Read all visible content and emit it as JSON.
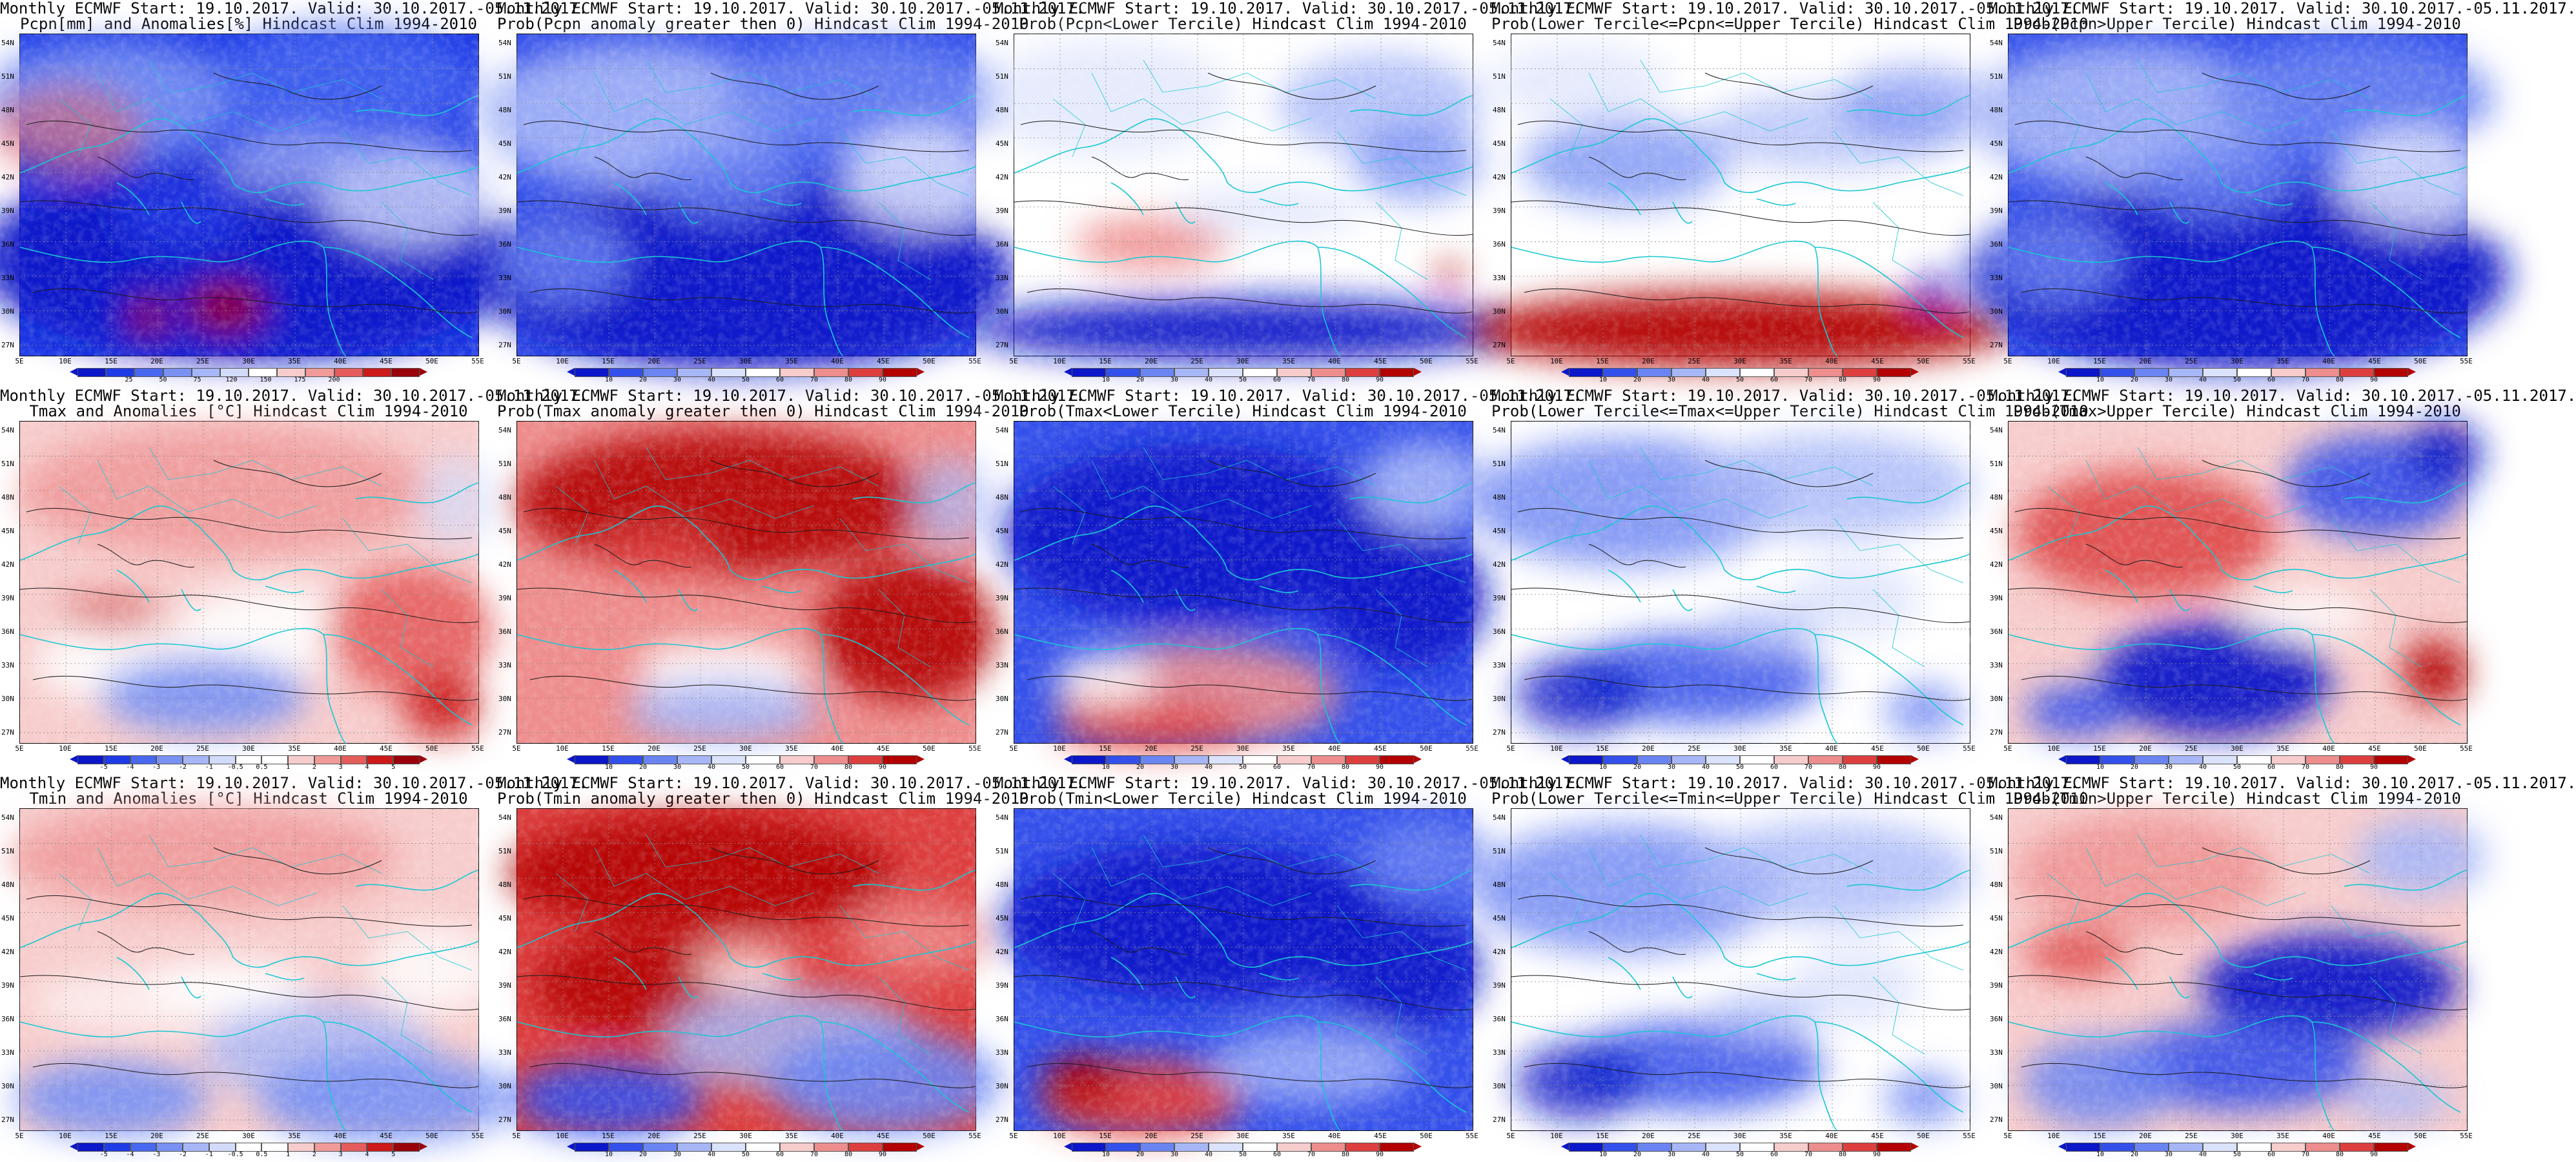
{
  "page": {
    "columns": 5,
    "rows": 3
  },
  "map_axes": {
    "lon_labels": [
      "5E",
      "10E",
      "15E",
      "20E",
      "25E",
      "30E",
      "35E",
      "40E",
      "45E",
      "50E",
      "55E"
    ],
    "lat_labels": [
      "54N",
      "51N",
      "48N",
      "45N",
      "42N",
      "39N",
      "36N",
      "33N",
      "30N",
      "27N"
    ]
  },
  "palettes": {
    "anom_precip": [
      "#0b17c8",
      "#1e3be6",
      "#4868f0",
      "#7891f3",
      "#a6b6f7",
      "#d3dbfb",
      "#ffffff",
      "#f7cccc",
      "#f09a9a",
      "#e55c5c",
      "#cc1a1a",
      "#99000b"
    ],
    "anom_temp": [
      "#0b17c8",
      "#1e3be6",
      "#4868f0",
      "#7891f3",
      "#a6b6f7",
      "#d3dbfb",
      "#ffffff",
      "#ffffff",
      "#f7cccc",
      "#f09a9a",
      "#e55c5c",
      "#cc1a1a",
      "#99000b"
    ],
    "prob": [
      "#0b17c8",
      "#3450ea",
      "#6a84f2",
      "#a6b6f7",
      "#dbe2fc",
      "#ffffff",
      "#f7cccc",
      "#ee8d8d",
      "#dd3f3f",
      "#b30000"
    ]
  },
  "colorbar_labels": {
    "anom_precip": [
      "25",
      "50",
      "75",
      "120",
      "150",
      "175",
      "200"
    ],
    "anom_temp": [
      "-5",
      "-4",
      "-3",
      "-2",
      "-1",
      "-0.5",
      "0.5",
      "1",
      "2",
      "3",
      "4",
      "5"
    ],
    "prob": [
      "10",
      "20",
      "30",
      "40",
      "50",
      "60",
      "70",
      "80",
      "90"
    ]
  },
  "panels": [
    {
      "title1": "Monthly ECMWF Start: 19.10.2017. Valid: 30.10.2017.-05.11.2017.",
      "title2": "Pcpn[mm] and Anomalies[%] Hindcast Clim 1994-2010",
      "palette": "anom_precip",
      "scheme": "pcpn_anom"
    },
    {
      "title1": "Monthly ECMWF Start: 19.10.2017. Valid: 30.10.2017.-05.11.2017.",
      "title2": "Prob(Pcpn anomaly greater then 0) Hindcast Clim 1994-2010",
      "palette": "prob",
      "scheme": "pcpn_low"
    },
    {
      "title1": "Monthly ECMWF Start: 19.10.2017. Valid: 30.10.2017.-05.11.2017.",
      "title2": "Prob(Pcpn<Lower Tercile) Hindcast Clim 1994-2010",
      "palette": "prob",
      "scheme": "pcpn_lowerterc"
    },
    {
      "title1": "Monthly ECMWF Start: 19.10.2017. Valid: 30.10.2017.-05.11.2017.",
      "title2": "Prob(Lower Tercile<=Pcpn<=Upper Tercile) Hindcast Clim 1994-2010",
      "palette": "prob",
      "scheme": "pcpn_mid"
    },
    {
      "title1": "Monthly ECMWF Start: 19.10.2017. Valid: 30.10.2017.-05.11.2017.",
      "title2": "Prob(Pcpn>Upper Tercile) Hindcast Clim 1994-2010",
      "palette": "prob",
      "scheme": "pcpn_low"
    },
    {
      "title1": "Monthly ECMWF Start: 19.10.2017. Valid: 30.10.2017.-05.11.2017.",
      "title2": "Tmax and Anomalies [°C] Hindcast Clim 1994-2010",
      "palette": "anom_temp",
      "scheme": "tmax_anom"
    },
    {
      "title1": "Monthly ECMWF Start: 19.10.2017. Valid: 30.10.2017.-05.11.2017.",
      "title2": "Prob(Tmax anomaly greater then 0) Hindcast Clim 1994-2010",
      "palette": "prob",
      "scheme": "tmax_prob"
    },
    {
      "title1": "Monthly ECMWF Start: 19.10.2017. Valid: 30.10.2017.-05.11.2017.",
      "title2": "Prob(Tmax<Lower Tercile) Hindcast Clim 1994-2010",
      "palette": "prob",
      "scheme": "tmax_lower"
    },
    {
      "title1": "Monthly ECMWF Start: 19.10.2017. Valid: 30.10.2017.-05.11.2017.",
      "title2": "Prob(Lower Tercile<=Tmax<=Upper Tercile) Hindcast Clim 1994-2010",
      "palette": "prob",
      "scheme": "mid_blue"
    },
    {
      "title1": "Monthly ECMWF Start: 19.10.2017. Valid: 30.10.2017.-05.11.2017.",
      "title2": "Prob(Tmax>Upper Tercile) Hindcast Clim 1994-2010",
      "palette": "prob",
      "scheme": "tmax_upper"
    },
    {
      "title1": "Monthly ECMWF Start: 19.10.2017. Valid: 30.10.2017.-05.11.2017.",
      "title2": "Tmin and Anomalies [°C] Hindcast Clim 1994-2010",
      "palette": "anom_temp",
      "scheme": "tmin_anom"
    },
    {
      "title1": "Monthly ECMWF Start: 19.10.2017. Valid: 30.10.2017.-05.11.2017.",
      "title2": "Prob(Tmin anomaly greater then 0) Hindcast Clim 1994-2010",
      "palette": "prob",
      "scheme": "tmin_prob"
    },
    {
      "title1": "Monthly ECMWF Start: 19.10.2017. Valid: 30.10.2017.-05.11.2017.",
      "title2": "Prob(Tmin<Lower Tercile) Hindcast Clim 1994-2010",
      "palette": "prob",
      "scheme": "tmin_lower"
    },
    {
      "title1": "Monthly ECMWF Start: 19.10.2017. Valid: 30.10.2017.-05.11.2017.",
      "title2": "Prob(Lower Tercile<=Tmin<=Upper Tercile) Hindcast Clim 1994-2010",
      "palette": "prob",
      "scheme": "mid_blue"
    },
    {
      "title1": "Monthly ECMWF Start: 19.10.2017. Valid: 30.10.2017.-05.11.2017.",
      "title2": "Prob(Tmin>Upper Tercile) Hindcast Clim 1994-2010",
      "palette": "prob",
      "scheme": "tmin_upper"
    }
  ]
}
